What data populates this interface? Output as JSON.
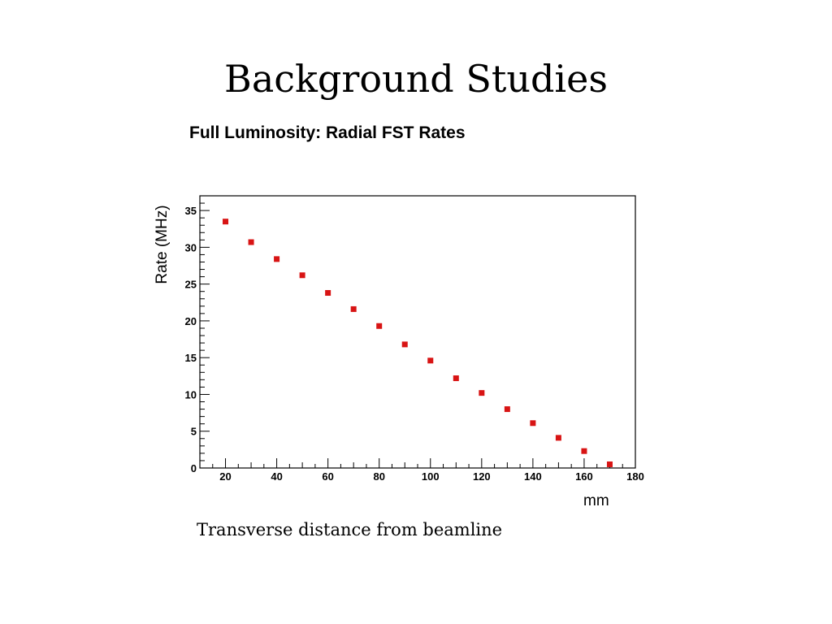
{
  "slide": {
    "title": "Background Studies",
    "caption": "Transverse distance from beamline"
  },
  "chart_data": {
    "type": "scatter",
    "title": "Full Luminosity: Radial FST Rates",
    "xlabel": "mm",
    "ylabel": "Rate (MHz)",
    "xlim": [
      10,
      180
    ],
    "ylim": [
      0,
      37
    ],
    "xticks": [
      20,
      40,
      60,
      80,
      100,
      120,
      140,
      160,
      180
    ],
    "yticks": [
      0,
      5,
      10,
      15,
      20,
      25,
      30,
      35
    ],
    "grid": false,
    "marker_color": "#d81414",
    "x": [
      20,
      30,
      40,
      50,
      60,
      70,
      80,
      90,
      100,
      110,
      120,
      130,
      140,
      150,
      160,
      170
    ],
    "y": [
      33.5,
      30.7,
      28.4,
      26.2,
      23.8,
      21.6,
      19.3,
      16.8,
      14.6,
      12.2,
      10.2,
      8.0,
      6.1,
      4.1,
      2.3,
      0.5
    ]
  }
}
